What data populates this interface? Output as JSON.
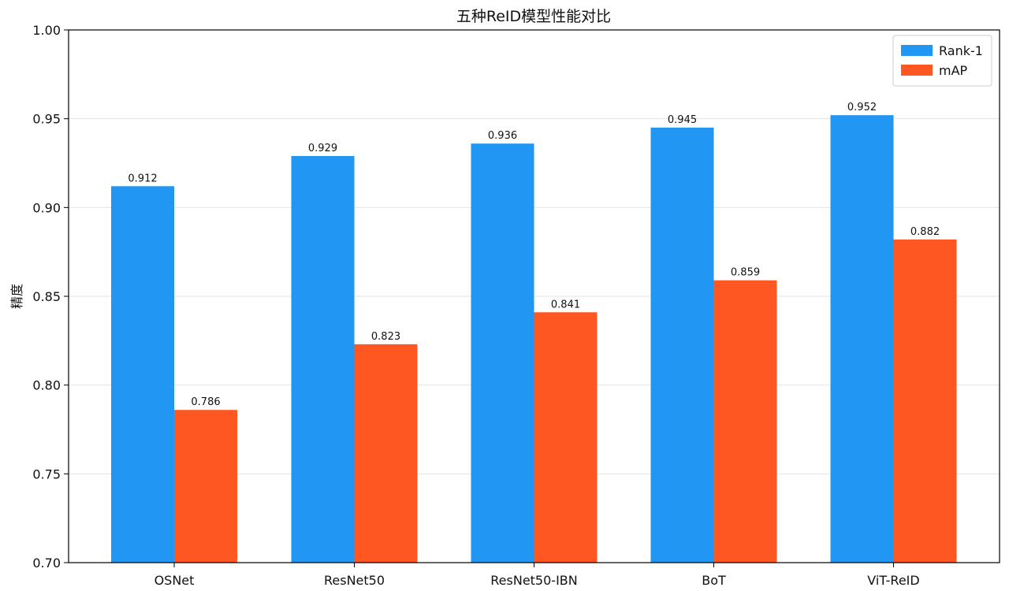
{
  "chart_data": {
    "type": "bar",
    "title": "五种ReID模型性能对比",
    "xlabel": "",
    "ylabel": "精度",
    "categories": [
      "OSNet",
      "ResNet50",
      "ResNet50-IBN",
      "BoT",
      "ViT-ReID"
    ],
    "series": [
      {
        "name": "Rank-1",
        "values": [
          0.912,
          0.929,
          0.936,
          0.945,
          0.952
        ],
        "color": "#2196F3"
      },
      {
        "name": "mAP",
        "values": [
          0.786,
          0.823,
          0.841,
          0.859,
          0.882
        ],
        "color": "#FF5722"
      }
    ],
    "value_labels": {
      "Rank-1": [
        "0.912",
        "0.929",
        "0.936",
        "0.945",
        "0.952"
      ],
      "mAP": [
        "0.786",
        "0.823",
        "0.841",
        "0.859",
        "0.882"
      ]
    },
    "ylim": [
      0.7,
      1.0
    ],
    "yticks": [
      "0.70",
      "0.75",
      "0.80",
      "0.85",
      "0.90",
      "0.95",
      "1.00"
    ],
    "grid": "horizontal",
    "legend_position": "top-right"
  }
}
